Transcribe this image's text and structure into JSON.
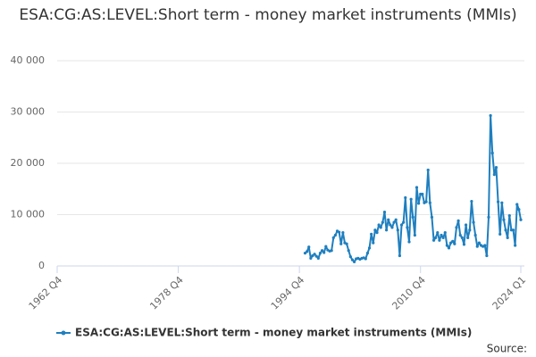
{
  "chart_data": {
    "type": "line",
    "title": "ESA:CG:AS:LEVEL:Short term - money market instruments (MMIs)",
    "source": "Source:",
    "x": [
      "1995 Q3",
      "1995 Q4",
      "1996 Q1",
      "1996 Q2",
      "1996 Q3",
      "1996 Q4",
      "1997 Q1",
      "1997 Q2",
      "1997 Q3",
      "1997 Q4",
      "1998 Q1",
      "1998 Q2",
      "1998 Q3",
      "1998 Q4",
      "1999 Q1",
      "1999 Q2",
      "1999 Q3",
      "1999 Q4",
      "2000 Q1",
      "2000 Q2",
      "2000 Q3",
      "2000 Q4",
      "2001 Q1",
      "2001 Q2",
      "2001 Q3",
      "2001 Q4",
      "2002 Q1",
      "2002 Q2",
      "2002 Q3",
      "2002 Q4",
      "2003 Q1",
      "2003 Q2",
      "2003 Q3",
      "2003 Q4",
      "2004 Q1",
      "2004 Q2",
      "2004 Q3",
      "2004 Q4",
      "2005 Q1",
      "2005 Q2",
      "2005 Q3",
      "2005 Q4",
      "2006 Q1",
      "2006 Q2",
      "2006 Q3",
      "2006 Q4",
      "2007 Q1",
      "2007 Q2",
      "2007 Q3",
      "2007 Q4",
      "2008 Q1",
      "2008 Q2",
      "2008 Q3",
      "2008 Q4",
      "2009 Q1",
      "2009 Q2",
      "2009 Q3",
      "2009 Q4",
      "2010 Q1",
      "2010 Q2",
      "2010 Q3",
      "2010 Q4",
      "2011 Q1",
      "2011 Q2",
      "2011 Q3",
      "2011 Q4",
      "2012 Q1",
      "2012 Q2",
      "2012 Q3",
      "2012 Q4",
      "2013 Q1",
      "2013 Q2",
      "2013 Q3",
      "2013 Q4",
      "2014 Q1",
      "2014 Q2",
      "2014 Q3",
      "2014 Q4",
      "2015 Q1",
      "2015 Q2",
      "2015 Q3",
      "2015 Q4",
      "2016 Q1",
      "2016 Q2",
      "2016 Q3",
      "2016 Q4",
      "2017 Q1",
      "2017 Q2",
      "2017 Q3",
      "2017 Q4",
      "2018 Q1",
      "2018 Q2",
      "2018 Q3",
      "2018 Q4",
      "2019 Q1",
      "2019 Q2",
      "2019 Q3",
      "2019 Q4",
      "2020 Q1",
      "2020 Q2",
      "2020 Q3",
      "2020 Q4",
      "2021 Q1",
      "2021 Q2",
      "2021 Q3",
      "2021 Q4",
      "2022 Q1",
      "2022 Q2",
      "2022 Q3",
      "2022 Q4",
      "2023 Q1",
      "2023 Q2",
      "2023 Q3",
      "2023 Q4",
      "2024 Q1"
    ],
    "series": [
      {
        "name": "ESA:CG:AS:LEVEL:Short term - money market instruments (MMIs)",
        "color": "#1f7fbf",
        "values": [
          2500,
          2800,
          3700,
          1500,
          2000,
          2300,
          1900,
          1500,
          2500,
          3000,
          2600,
          3800,
          3100,
          2900,
          3000,
          5500,
          6000,
          6800,
          6600,
          4300,
          6500,
          4500,
          4300,
          3000,
          1800,
          1200,
          800,
          1400,
          1500,
          1300,
          1500,
          1600,
          1400,
          2500,
          3500,
          6200,
          4500,
          7000,
          6500,
          8000,
          7500,
          8500,
          10500,
          7000,
          9000,
          8000,
          7500,
          8500,
          9000,
          7000,
          2000,
          8000,
          8500,
          13300,
          7500,
          4700,
          13000,
          9500,
          6000,
          15300,
          12200,
          14000,
          14000,
          12300,
          12500,
          18700,
          12300,
          9500,
          5000,
          5500,
          6500,
          5000,
          6000,
          5500,
          6500,
          4000,
          3500,
          4500,
          4800,
          4300,
          7500,
          8800,
          6000,
          5500,
          4200,
          8000,
          5500,
          7000,
          12600,
          8500,
          6000,
          3800,
          4500,
          4000,
          3800,
          4000,
          2000,
          9500,
          29300,
          22000,
          17800,
          19200,
          12500,
          6200,
          12300,
          9000,
          7000,
          5500,
          9800,
          7000,
          7000,
          4000,
          12000,
          11000,
          9000
        ]
      }
    ],
    "xlim": [
      "1962 Q4",
      "2024 Q1"
    ],
    "xticks": [
      "1962 Q4",
      "1978 Q4",
      "1994 Q4",
      "2010 Q4",
      "2024 Q1"
    ],
    "ylim": [
      0,
      40000
    ],
    "yticks": [
      0,
      {
        "value": 10000,
        "label": "10 000"
      },
      {
        "value": 20000,
        "label": "20 000"
      },
      {
        "value": 30000,
        "label": "30 000"
      },
      {
        "value": 40000,
        "label": "40 000"
      }
    ],
    "grid": true,
    "legend": "bottom"
  }
}
